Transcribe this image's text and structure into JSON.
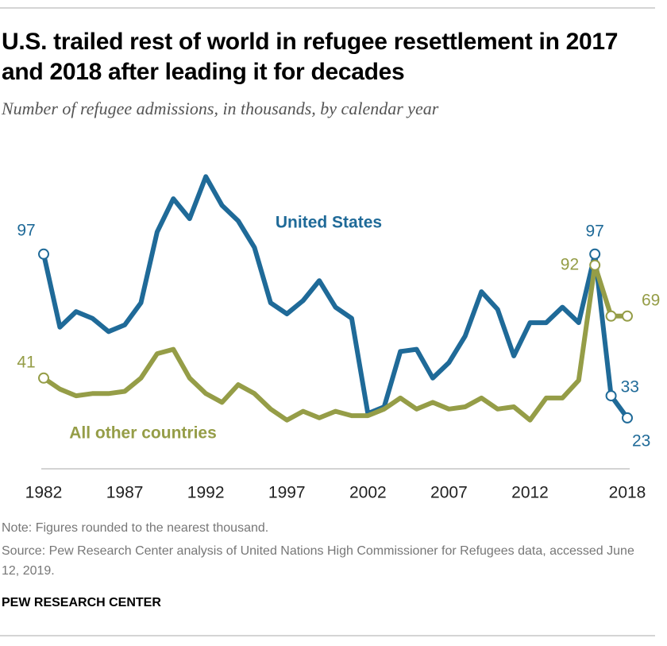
{
  "chart_data": {
    "type": "line",
    "title": "U.S. trailed rest of world in refugee resettlement in 2017 and 2018 after leading it for decades",
    "subtitle": "Number of refugee admissions, in thousands, by calendar year",
    "x": [
      1982,
      1983,
      1984,
      1985,
      1986,
      1987,
      1988,
      1989,
      1990,
      1991,
      1992,
      1993,
      1994,
      1995,
      1996,
      1997,
      1998,
      1999,
      2000,
      2001,
      2002,
      2003,
      2004,
      2005,
      2006,
      2007,
      2008,
      2009,
      2010,
      2011,
      2012,
      2013,
      2014,
      2015,
      2016,
      2017,
      2018
    ],
    "series": [
      {
        "name": "United States",
        "color": "#1f6a98",
        "values": [
          97,
          64,
          71,
          68,
          62,
          65,
          75,
          107,
          122,
          113,
          132,
          119,
          112,
          100,
          75,
          70,
          76,
          85,
          73,
          68,
          25,
          28,
          53,
          54,
          41,
          48,
          60,
          80,
          72,
          51,
          66,
          66,
          73,
          66,
          97,
          33,
          23
        ]
      },
      {
        "name": "All other countries",
        "color": "#959d47",
        "values": [
          41,
          36,
          33,
          34,
          34,
          35,
          41,
          52,
          54,
          41,
          34,
          30,
          38,
          34,
          27,
          22,
          26,
          23,
          26,
          24,
          24,
          27,
          32,
          27,
          30,
          27,
          28,
          32,
          27,
          28,
          22,
          32,
          32,
          40,
          92,
          69,
          69
        ]
      }
    ],
    "xlim": [
      1982,
      2018
    ],
    "xticks": [
      1982,
      1987,
      1992,
      1997,
      2002,
      2007,
      2012,
      2018
    ],
    "ylim": [
      0,
      140
    ],
    "grid": false,
    "note": "Note: Figures rounded to the nearest thousand.",
    "source": "Source: Pew Research Center analysis of United Nations High Commissioner for Refugees data, accessed June 12, 2019.",
    "footer": "PEW RESEARCH CENTER"
  }
}
